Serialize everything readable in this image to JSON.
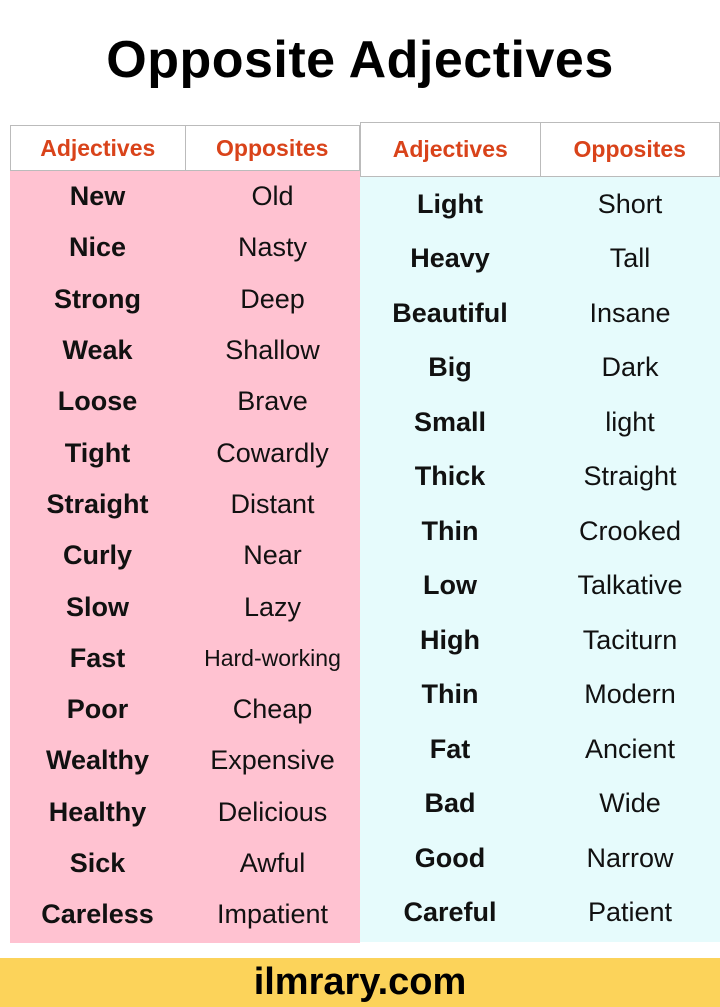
{
  "title": "Opposite Adjectives",
  "colors": {
    "header_text": "#d9431a",
    "left_bg": "#ffc2d1",
    "right_bg": "#e6fbfc",
    "footer_bg": "#fcd35a"
  },
  "left_table": {
    "headers": [
      "Adjectives",
      "Opposites"
    ],
    "rows": [
      [
        "New",
        "Old"
      ],
      [
        "Nice",
        "Nasty"
      ],
      [
        "Strong",
        "Deep"
      ],
      [
        "Weak",
        "Shallow"
      ],
      [
        "Loose",
        "Brave"
      ],
      [
        "Tight",
        "Cowardly"
      ],
      [
        "Straight",
        "Distant"
      ],
      [
        "Curly",
        "Near"
      ],
      [
        "Slow",
        "Lazy"
      ],
      [
        "Fast",
        "Hard-working"
      ],
      [
        "Poor",
        "Cheap"
      ],
      [
        "Wealthy",
        "Expensive"
      ],
      [
        "Healthy",
        "Delicious"
      ],
      [
        "Sick",
        "Awful"
      ],
      [
        "Careless",
        "Impatient"
      ]
    ]
  },
  "right_table": {
    "headers": [
      "Adjectives",
      "Opposites"
    ],
    "rows": [
      [
        "Light",
        "Short"
      ],
      [
        "Heavy",
        "Tall"
      ],
      [
        "Beautiful",
        "Insane"
      ],
      [
        "Big",
        "Dark"
      ],
      [
        "Small",
        "light"
      ],
      [
        "Thick",
        "Straight"
      ],
      [
        "Thin",
        "Crooked"
      ],
      [
        "Low",
        "Talkative"
      ],
      [
        "High",
        "Taciturn"
      ],
      [
        "Thin",
        "Modern"
      ],
      [
        "Fat",
        "Ancient"
      ],
      [
        "Bad",
        "Wide"
      ],
      [
        "Good",
        "Narrow"
      ],
      [
        "Careful",
        "Patient"
      ]
    ]
  },
  "footer": "ilmrary.com"
}
